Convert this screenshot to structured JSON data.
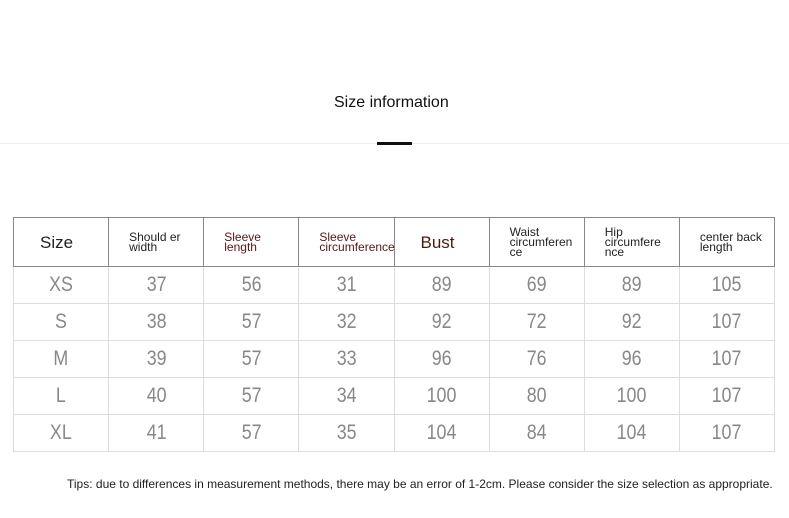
{
  "title": "Size information",
  "table": {
    "headers": [
      {
        "text": "Size",
        "color": "#222222"
      },
      {
        "text": "Should er width",
        "color": "#222222"
      },
      {
        "text": "Sleeve length",
        "color": "#5a1414"
      },
      {
        "text": "Sleeve circumference",
        "color": "#5a1414"
      },
      {
        "text": "Bust",
        "color": "#4a1c0c"
      },
      {
        "text": "Waist circumferen ce",
        "color": "#222222"
      },
      {
        "text": "Hip circumfere nce",
        "color": "#222222"
      },
      {
        "text": "center back length",
        "color": "#222222"
      }
    ],
    "rows": [
      [
        "XS",
        "37",
        "56",
        "31",
        "89",
        "69",
        "89",
        "105"
      ],
      [
        "S",
        "38",
        "57",
        "32",
        "92",
        "72",
        "92",
        "107"
      ],
      [
        "M",
        "39",
        "57",
        "33",
        "96",
        "76",
        "96",
        "107"
      ],
      [
        "L",
        "40",
        "57",
        "34",
        "100",
        "80",
        "100",
        "107"
      ],
      [
        "XL",
        "41",
        "57",
        "35",
        "104",
        "84",
        "104",
        "107"
      ]
    ]
  },
  "tips": "Tips: due to differences in measurement methods, there may be an error of 1-2cm. Please consider the size selection as appropriate."
}
